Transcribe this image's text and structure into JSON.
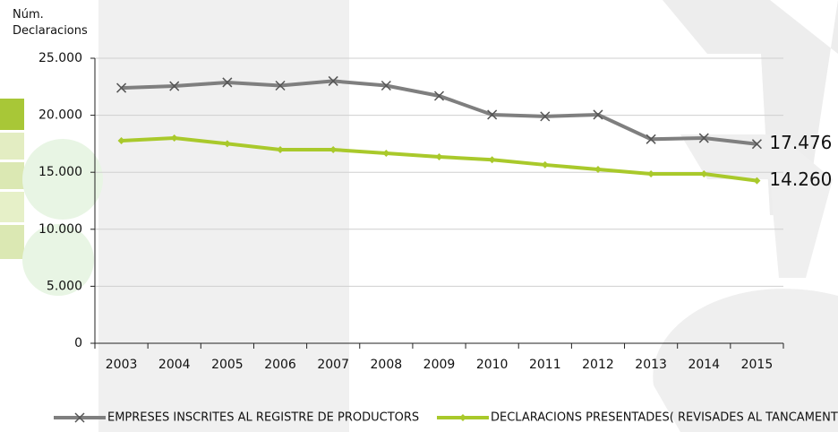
{
  "chart_data": {
    "type": "line",
    "y_label": "Núm. Declaracions",
    "categories": [
      "2003",
      "2004",
      "2005",
      "2006",
      "2007",
      "2008",
      "2009",
      "2010",
      "2011",
      "2012",
      "2013",
      "2014",
      "2015"
    ],
    "ylim": [
      0,
      25000
    ],
    "yticks": [
      0,
      {
        "value": 5000,
        "label": "5.000"
      },
      {
        "value": 10000,
        "label": "10.000"
      },
      {
        "value": 15000,
        "label": "15.000"
      },
      {
        "value": 20000,
        "label": "20.000"
      },
      {
        "value": 25000,
        "label": "25.000"
      }
    ],
    "grid": true,
    "legend": "bottom",
    "series": [
      {
        "name": "EMPRESES INSCRITES AL REGISTRE DE PRODUCTORS",
        "color": "#7f7f7f",
        "marker": "x",
        "values": [
          22400,
          22560,
          22880,
          22600,
          23000,
          22600,
          21700,
          20050,
          19900,
          20050,
          17900,
          18000,
          17476
        ],
        "value_labels": [
          null,
          null,
          null,
          null,
          null,
          null,
          null,
          null,
          null,
          null,
          null,
          null,
          "17.476"
        ]
      },
      {
        "name": "DECLARACIONS PRESENTADES( REVISADES AL TANCAMENT)",
        "color": "#a9c92b",
        "marker": "diamond",
        "values": [
          17770,
          18000,
          17500,
          16980,
          16980,
          16670,
          16350,
          16100,
          15650,
          15250,
          14860,
          14860,
          14260
        ],
        "value_labels": [
          null,
          null,
          null,
          null,
          null,
          null,
          null,
          null,
          null,
          null,
          null,
          null,
          "14.260"
        ]
      }
    ]
  }
}
